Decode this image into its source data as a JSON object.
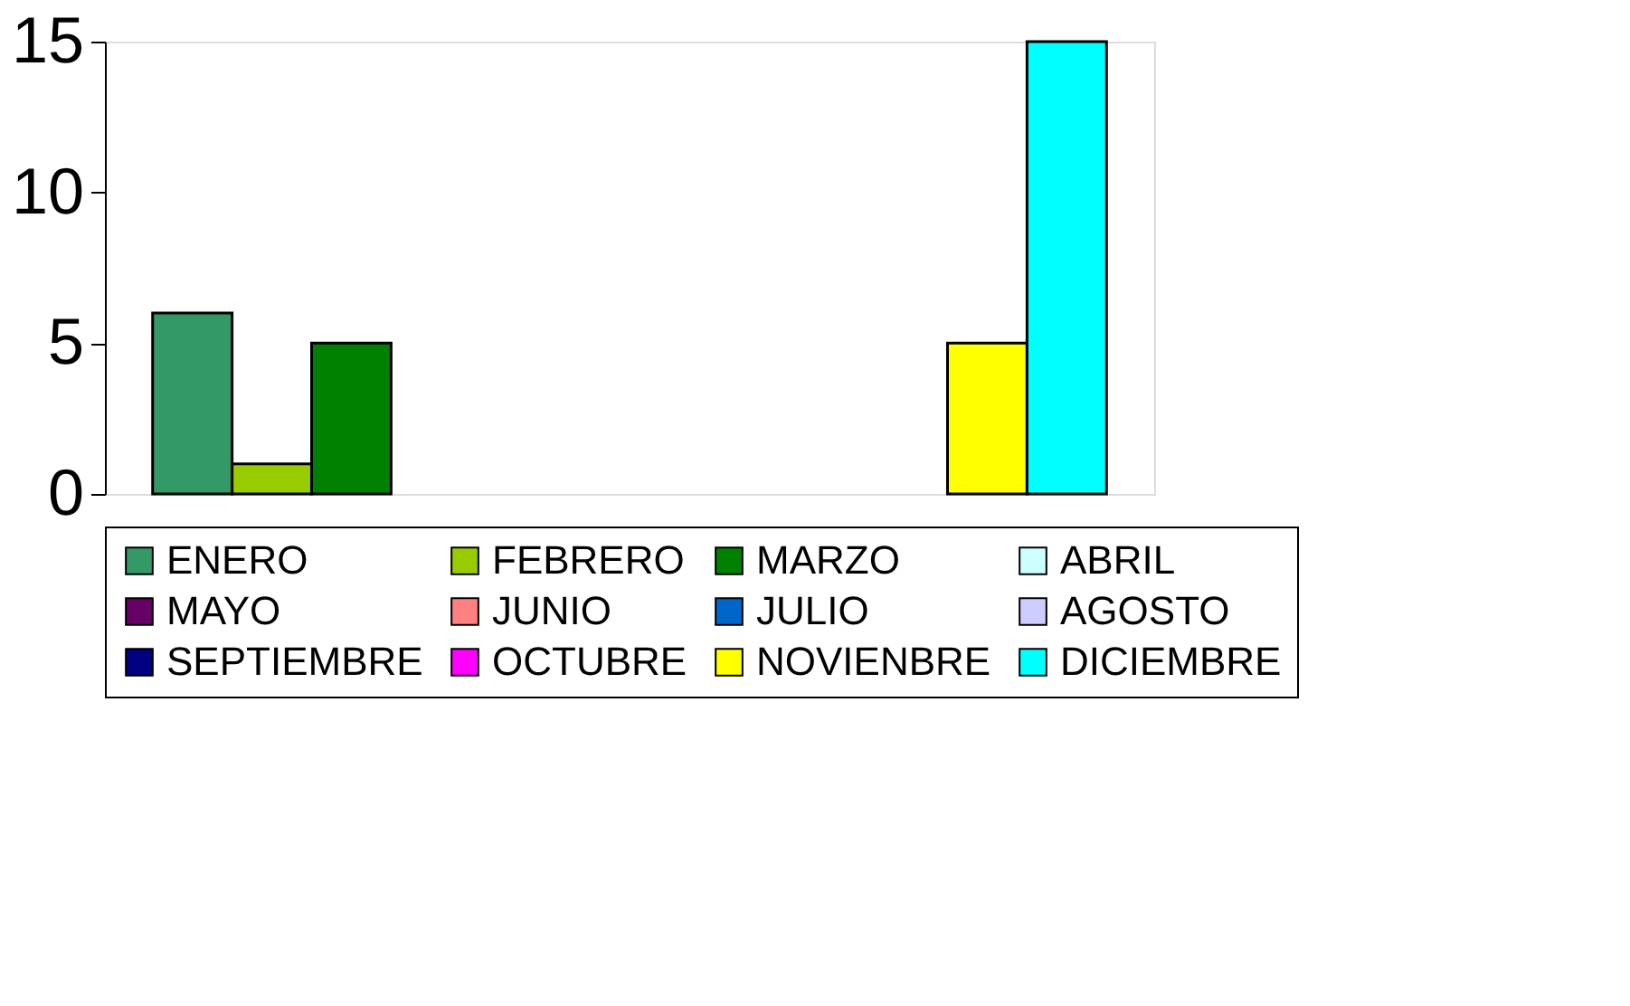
{
  "chart_data": {
    "type": "bar",
    "categories": [
      null
    ],
    "series": [
      {
        "name": "ENERO",
        "color": "#339966",
        "values": [
          6
        ]
      },
      {
        "name": "FEBRERO",
        "color": "#99cc00",
        "values": [
          1
        ]
      },
      {
        "name": "MARZO",
        "color": "#008000",
        "values": [
          5
        ]
      },
      {
        "name": "ABRIL",
        "color": "#ccffff",
        "values": [
          0
        ]
      },
      {
        "name": "MAYO",
        "color": "#660066",
        "values": [
          0
        ]
      },
      {
        "name": "JUNIO",
        "color": "#ff8080",
        "values": [
          0
        ]
      },
      {
        "name": "JULIO",
        "color": "#0066cc",
        "values": [
          0
        ]
      },
      {
        "name": "AGOSTO",
        "color": "#ccccff",
        "values": [
          0
        ]
      },
      {
        "name": "SEPTIEMBRE",
        "color": "#000080",
        "values": [
          0
        ]
      },
      {
        "name": "OCTUBRE",
        "color": "#ff00ff",
        "values": [
          0
        ]
      },
      {
        "name": "NOVIENBRE",
        "color": "#ffff00",
        "values": [
          5
        ]
      },
      {
        "name": "DICIEMBRE",
        "color": "#00ffff",
        "values": [
          15
        ]
      }
    ],
    "ylim": [
      0,
      15
    ],
    "yticks": [
      0,
      5,
      10,
      15
    ],
    "grid": false,
    "legend": "bottom"
  }
}
